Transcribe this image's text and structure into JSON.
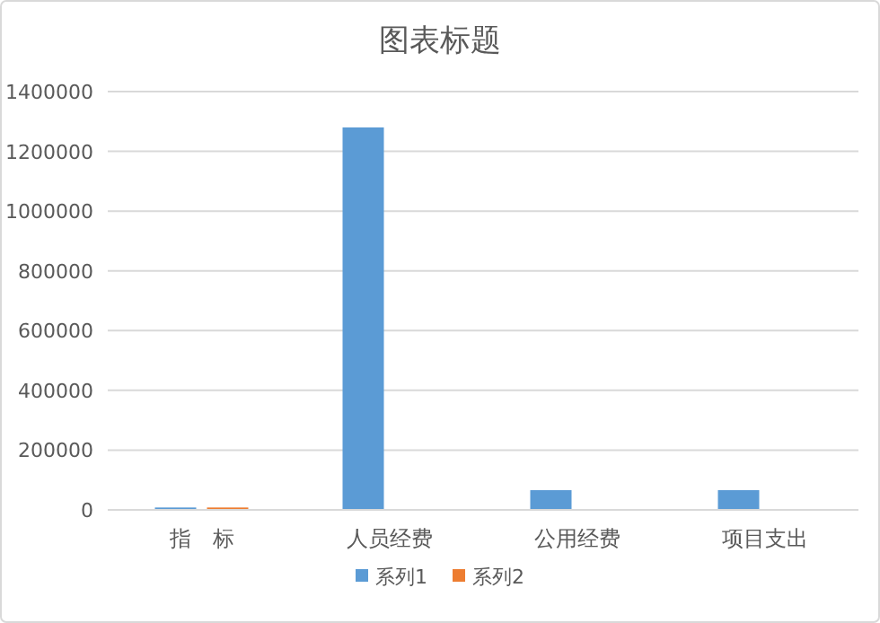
{
  "chart_data": {
    "type": "bar",
    "title": "图表标题",
    "categories": [
      "指　标",
      "人员经费",
      "公用经费",
      "项目支出"
    ],
    "series": [
      {
        "name": "系列1",
        "color": "#5b9bd5",
        "values": [
          8000,
          1280000,
          66000,
          66000
        ]
      },
      {
        "name": "系列2",
        "color": "#ed7d31",
        "values": [
          8000,
          null,
          null,
          null
        ]
      }
    ],
    "ylim": [
      0,
      1400000
    ],
    "yticks": [
      0,
      200000,
      400000,
      600000,
      800000,
      1000000,
      1200000,
      1400000
    ],
    "grid": "y",
    "legend": "bottom"
  }
}
